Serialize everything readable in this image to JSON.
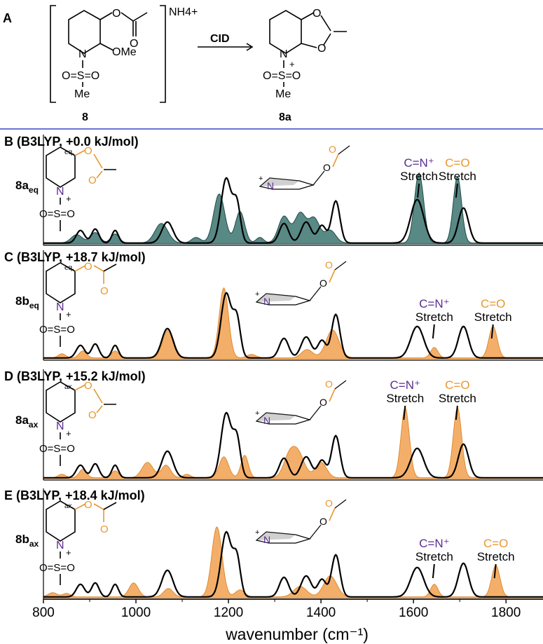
{
  "panel_a": {
    "label": "A",
    "reactant": {
      "counter_ion": "NH4+",
      "ome": "OMe",
      "n": "N",
      "o_ring": "O",
      "o_carbonyl": "O",
      "sulfonyl": "O=S=O",
      "me": "Me",
      "id": "8"
    },
    "arrow_label": "CID",
    "product": {
      "n": "N",
      "charge": "+",
      "o1": "O",
      "o2": "O",
      "sulfonyl": "O=S=O",
      "me": "Me",
      "id": "8a"
    }
  },
  "colors": {
    "divider": "#6b73d8",
    "theory_teal": "#2f6b66",
    "theory_orange": "#f2a65a",
    "experiment": "#000000",
    "orange_text": "#e8962f",
    "purple_text": "#5a2d91"
  },
  "chart_data": [
    {
      "type": "line",
      "panel": "B",
      "title": "B (B3LYP, +0.0 kJ/mol)",
      "structure_label": "8a",
      "structure_sub": "eq",
      "position_tag": "eq.",
      "xlim": [
        800,
        1880
      ],
      "series": [
        {
          "peaks": [
            [
              872,
              0.12,
              12
            ],
            [
              912,
              0.15,
              10
            ],
            [
              955,
              0.13,
              9
            ],
            [
              1055,
              0.28,
              14
            ],
            [
              1130,
              0.08,
              10
            ],
            [
              1180,
              0.7,
              12
            ],
            [
              1225,
              0.45,
              10
            ],
            [
              1268,
              0.08,
              8
            ],
            [
              1320,
              0.38,
              12
            ],
            [
              1355,
              0.42,
              12
            ],
            [
              1385,
              0.35,
              12
            ],
            [
              1420,
              0.18,
              12
            ],
            [
              1612,
              1.0,
              10
            ],
            [
              1695,
              0.95,
              9
            ]
          ]
        },
        {
          "peaks": [
            [
              880,
              0.18,
              9
            ],
            [
              912,
              0.2,
              8
            ],
            [
              955,
              0.18,
              7
            ],
            [
              1068,
              0.3,
              12
            ],
            [
              1195,
              0.92,
              11
            ],
            [
              1218,
              0.55,
              8
            ],
            [
              1320,
              0.28,
              10
            ],
            [
              1368,
              0.3,
              11
            ],
            [
              1402,
              0.25,
              9
            ],
            [
              1432,
              0.6,
              9
            ],
            [
              1608,
              0.62,
              14
            ],
            [
              1708,
              0.5,
              11
            ]
          ]
        }
      ],
      "annotations": [
        {
          "text_1": "C=N⁺",
          "text_2": "Stretch",
          "x": 1612
        },
        {
          "text_1": "C=O",
          "text_2": "Stretch",
          "x": 1695
        }
      ]
    },
    {
      "type": "line",
      "panel": "C",
      "title": "C (B3LYP, +18.7 kJ/mol)",
      "structure_label": "8b",
      "structure_sub": "eq",
      "position_tag": "eq.",
      "xlim": [
        800,
        1880
      ],
      "series": [
        {
          "peaks": [
            [
              840,
              0.06,
              8
            ],
            [
              885,
              0.1,
              8
            ],
            [
              955,
              0.1,
              8
            ],
            [
              1070,
              0.4,
              12
            ],
            [
              1190,
              1.0,
              10
            ],
            [
              1250,
              0.05,
              10
            ],
            [
              1370,
              0.12,
              12
            ],
            [
              1425,
              0.4,
              14
            ],
            [
              1645,
              0.15,
              8
            ],
            [
              1772,
              0.45,
              9
            ]
          ]
        },
        {
          "peaks": [
            [
              880,
              0.18,
              9
            ],
            [
              912,
              0.2,
              8
            ],
            [
              955,
              0.18,
              7
            ],
            [
              1068,
              0.42,
              12
            ],
            [
              1195,
              0.92,
              11
            ],
            [
              1218,
              0.55,
              8
            ],
            [
              1320,
              0.28,
              10
            ],
            [
              1368,
              0.3,
              11
            ],
            [
              1402,
              0.25,
              9
            ],
            [
              1432,
              0.62,
              9
            ],
            [
              1608,
              0.45,
              14
            ],
            [
              1708,
              0.45,
              11
            ]
          ]
        }
      ],
      "annotations": [
        {
          "text_1": "C=N⁺",
          "text_2": "Stretch",
          "x": 1645
        },
        {
          "text_1": "C=O",
          "text_2": "Stretch",
          "x": 1772
        }
      ]
    },
    {
      "type": "line",
      "panel": "D",
      "title": "D (B3LYP, +15.2 kJ/mol)",
      "structure_label": "8a",
      "structure_sub": "ax",
      "position_tag": "ax.",
      "xlim": [
        800,
        1880
      ],
      "series": [
        {
          "peaks": [
            [
              840,
              0.05,
              8
            ],
            [
              885,
              0.12,
              8
            ],
            [
              955,
              0.1,
              8
            ],
            [
              1025,
              0.22,
              12
            ],
            [
              1065,
              0.18,
              10
            ],
            [
              1110,
              0.05,
              8
            ],
            [
              1190,
              0.3,
              10
            ],
            [
              1235,
              0.32,
              8
            ],
            [
              1330,
              0.25,
              12
            ],
            [
              1350,
              0.35,
              14
            ],
            [
              1400,
              0.22,
              12
            ],
            [
              1582,
              1.0,
              9
            ],
            [
              1695,
              1.0,
              9
            ]
          ]
        },
        {
          "peaks": [
            [
              880,
              0.18,
              9
            ],
            [
              912,
              0.2,
              8
            ],
            [
              955,
              0.18,
              7
            ],
            [
              1068,
              0.38,
              12
            ],
            [
              1195,
              0.92,
              11
            ],
            [
              1218,
              0.55,
              8
            ],
            [
              1320,
              0.28,
              10
            ],
            [
              1368,
              0.3,
              11
            ],
            [
              1402,
              0.25,
              9
            ],
            [
              1432,
              0.6,
              9
            ],
            [
              1608,
              0.42,
              14
            ],
            [
              1708,
              0.48,
              11
            ]
          ]
        }
      ],
      "annotations": [
        {
          "text_1": "C=N⁺",
          "text_2": "Stretch",
          "x": 1582
        },
        {
          "text_1": "C=O",
          "text_2": "Stretch",
          "x": 1695
        }
      ]
    },
    {
      "type": "line",
      "panel": "E",
      "title": "E (B3LYP, +18.4 kJ/mol)",
      "structure_label": "8b",
      "structure_sub": "ax",
      "position_tag": "ax.",
      "xlim": [
        800,
        1880
      ],
      "series": [
        {
          "peaks": [
            [
              820,
              0.06,
              10
            ],
            [
              850,
              0.05,
              8
            ],
            [
              995,
              0.2,
              10
            ],
            [
              1070,
              0.12,
              10
            ],
            [
              1175,
              1.0,
              11
            ],
            [
              1225,
              0.1,
              10
            ],
            [
              1355,
              0.15,
              14
            ],
            [
              1420,
              0.3,
              14
            ],
            [
              1645,
              0.18,
              8
            ],
            [
              1778,
              0.45,
              9
            ]
          ]
        },
        {
          "peaks": [
            [
              880,
              0.18,
              9
            ],
            [
              912,
              0.2,
              8
            ],
            [
              955,
              0.18,
              7
            ],
            [
              1068,
              0.38,
              12
            ],
            [
              1195,
              0.92,
              11
            ],
            [
              1218,
              0.55,
              8
            ],
            [
              1320,
              0.28,
              10
            ],
            [
              1368,
              0.3,
              11
            ],
            [
              1402,
              0.25,
              9
            ],
            [
              1432,
              0.6,
              9
            ],
            [
              1608,
              0.42,
              14
            ],
            [
              1708,
              0.48,
              11
            ]
          ]
        }
      ],
      "annotations": [
        {
          "text_1": "C=N⁺",
          "text_2": "Stretch",
          "x": 1645
        },
        {
          "text_1": "C=O",
          "text_2": "Stretch",
          "x": 1778
        }
      ]
    }
  ],
  "axis": {
    "ticks": [
      "800",
      "1000",
      "1200",
      "1400",
      "1600",
      "1800"
    ],
    "xlabel": "wavenumber (cm⁻¹)"
  },
  "structure_text": {
    "N": "N",
    "plus": "+",
    "O": "O",
    "S": "S"
  }
}
